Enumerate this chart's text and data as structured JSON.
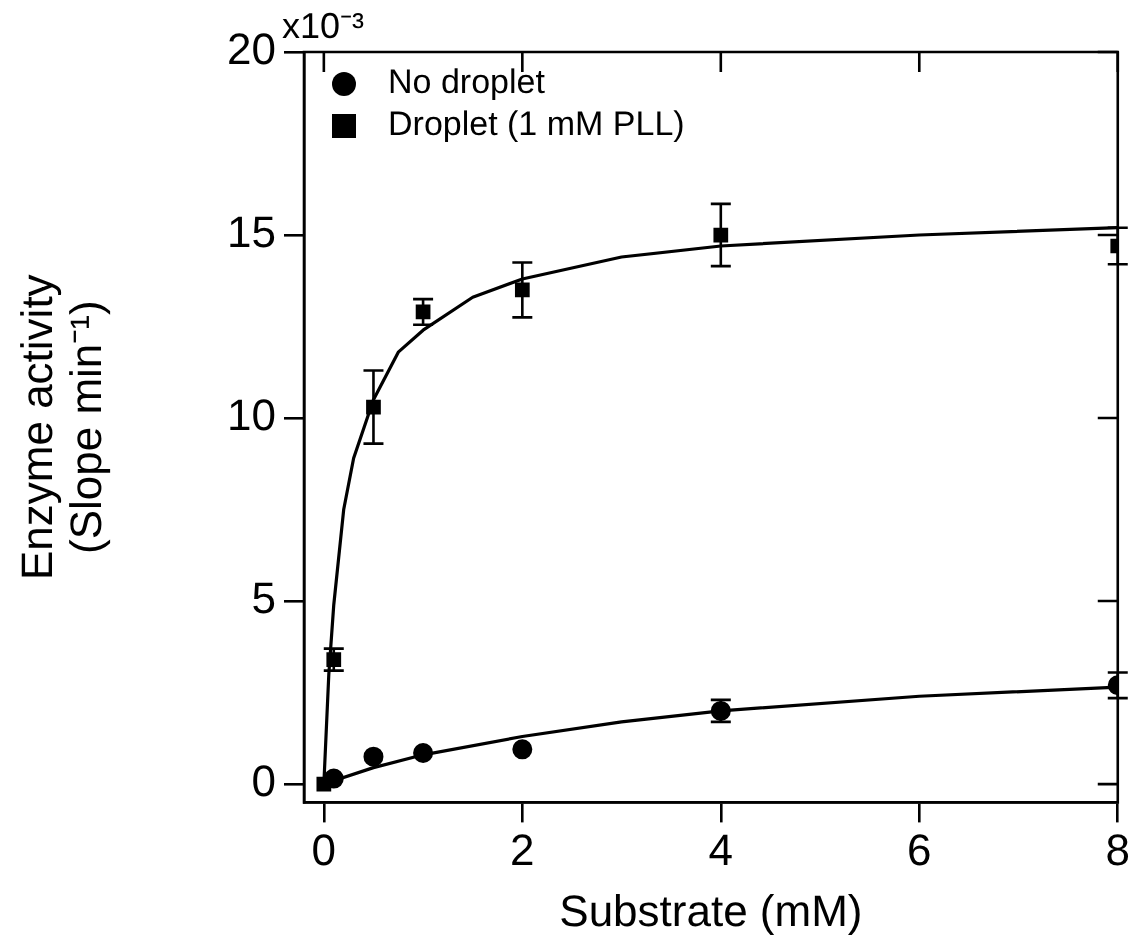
{
  "chart_data": {
    "type": "scatter",
    "xlabel": "Substrate (mM)",
    "ylabel": "Enzyme activity\n(Slope min⁻¹)",
    "xlim": [
      -0.2,
      8
    ],
    "xticks": [
      0,
      2,
      4,
      6,
      8
    ],
    "ylim": [
      -0.5,
      20
    ],
    "yticks": [
      0,
      5,
      10,
      15,
      20
    ],
    "annotations": [
      "x10⁻³"
    ],
    "grid": false,
    "legend": "top left",
    "series": [
      {
        "name": "No droplet",
        "color": "#000000",
        "marker": "circle",
        "x": [
          0.1,
          0.5,
          1,
          2,
          4,
          8
        ],
        "values": [
          0.15,
          0.75,
          0.85,
          0.95,
          2.0,
          2.7
        ],
        "errors": [
          null,
          null,
          null,
          null,
          0.3,
          0.35
        ]
      },
      {
        "name": "Droplet (1 mM PLL)",
        "color": "#000000",
        "marker": "square",
        "x": [
          0,
          0.1,
          0.5,
          1,
          2,
          4,
          8
        ],
        "values": [
          0,
          3.4,
          10.3,
          12.9,
          13.5,
          15.0,
          14.7
        ],
        "errors": [
          null,
          0.3,
          1.0,
          0.35,
          0.75,
          0.85,
          0.5
        ]
      },
      {
        "type": "line",
        "color": "#000000",
        "marker": "none",
        "x": [
          0,
          0.5,
          1,
          2,
          3,
          4,
          6,
          8
        ],
        "values": [
          0,
          0.45,
          0.8,
          1.3,
          1.7,
          2.0,
          2.4,
          2.65
        ]
      },
      {
        "type": "line",
        "color": "#000000",
        "marker": "none",
        "x": [
          0,
          0.05,
          0.1,
          0.2,
          0.3,
          0.5,
          0.75,
          1,
          1.5,
          2,
          3,
          4,
          6,
          8
        ],
        "values": [
          0,
          3.0,
          4.9,
          7.5,
          8.9,
          10.5,
          11.8,
          12.4,
          13.3,
          13.8,
          14.4,
          14.7,
          15.0,
          15.2
        ]
      }
    ]
  }
}
